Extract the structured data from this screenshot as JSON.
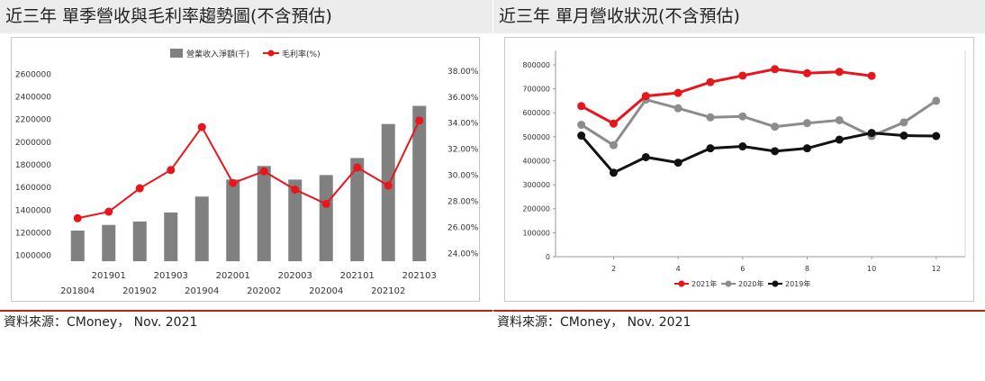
{
  "left": {
    "title": "近三年  單季營收與毛利率趨勢圖(不含預估)",
    "source": "資料來源：CMoney，  Nov. 2021"
  },
  "right": {
    "title": "近三年  單月營收狀況(不含預估)",
    "source": "資料來源：CMoney，  Nov. 2021"
  },
  "colors": {
    "bar": "#808080",
    "margin_line": "#e8151b",
    "y2021": "#e8151b",
    "y2020": "#8c8c8c",
    "y2019": "#111111"
  },
  "chart_data": [
    {
      "type": "bar+line",
      "legend": [
        "營業收入淨額(千)",
        "毛利率(%)"
      ],
      "categories": [
        "201804",
        "201901",
        "201902",
        "201903",
        "201904",
        "202001",
        "202002",
        "202003",
        "202004",
        "202101",
        "202102",
        "202103"
      ],
      "tick_labels_top": [
        "201901",
        "201903",
        "202001",
        "202003",
        "202101",
        "202103"
      ],
      "tick_labels_bottom": [
        "201804",
        "201902",
        "201904",
        "202002",
        "202004",
        "202102"
      ],
      "series": [
        {
          "name": "營業收入淨額(千)",
          "axis": "left",
          "values": [
            1220000,
            1270000,
            1300000,
            1380000,
            1520000,
            1670000,
            1790000,
            1670000,
            1710000,
            1860000,
            2160000,
            2320000
          ]
        },
        {
          "name": "毛利率(%)",
          "axis": "right",
          "values": [
            26.7,
            27.2,
            29.0,
            30.4,
            33.7,
            29.4,
            30.3,
            28.9,
            27.8,
            30.6,
            29.2,
            34.2
          ]
        }
      ],
      "y_left": {
        "min": 950000,
        "max": 2650000,
        "ticks": [
          1000000,
          1200000,
          1400000,
          1600000,
          1800000,
          2000000,
          2200000,
          2400000,
          2600000
        ]
      },
      "y_right": {
        "min": 23.4,
        "max": 38.2,
        "ticks": [
          "24.00%",
          "26.00%",
          "28.00%",
          "30.00%",
          "32.00%",
          "34.00%",
          "36.00%",
          "38.00%"
        ]
      }
    },
    {
      "type": "line",
      "x_ticks": [
        2,
        4,
        6,
        8,
        10,
        12
      ],
      "x_range": [
        0.2,
        12.9
      ],
      "y_range": [
        0,
        860000
      ],
      "y_ticks": [
        0,
        100000,
        200000,
        300000,
        400000,
        500000,
        600000,
        700000,
        800000
      ],
      "series": [
        {
          "name": "2021年",
          "x": [
            1,
            2,
            3,
            4,
            5,
            6,
            7,
            8,
            9,
            10
          ],
          "values": [
            628000,
            555000,
            670000,
            683000,
            728000,
            755000,
            782000,
            765000,
            771000,
            754000
          ]
        },
        {
          "name": "2020年",
          "x": [
            1,
            2,
            3,
            4,
            5,
            6,
            7,
            8,
            9,
            10,
            11,
            12
          ],
          "values": [
            550000,
            465000,
            655000,
            619000,
            581000,
            585000,
            542000,
            557000,
            569000,
            503000,
            560000,
            650000
          ]
        },
        {
          "name": "2019年",
          "x": [
            1,
            2,
            3,
            4,
            5,
            6,
            7,
            8,
            9,
            10,
            11,
            12
          ],
          "values": [
            505000,
            350000,
            415000,
            392000,
            452000,
            460000,
            440000,
            452000,
            488000,
            516000,
            505000,
            503000
          ]
        }
      ]
    }
  ]
}
